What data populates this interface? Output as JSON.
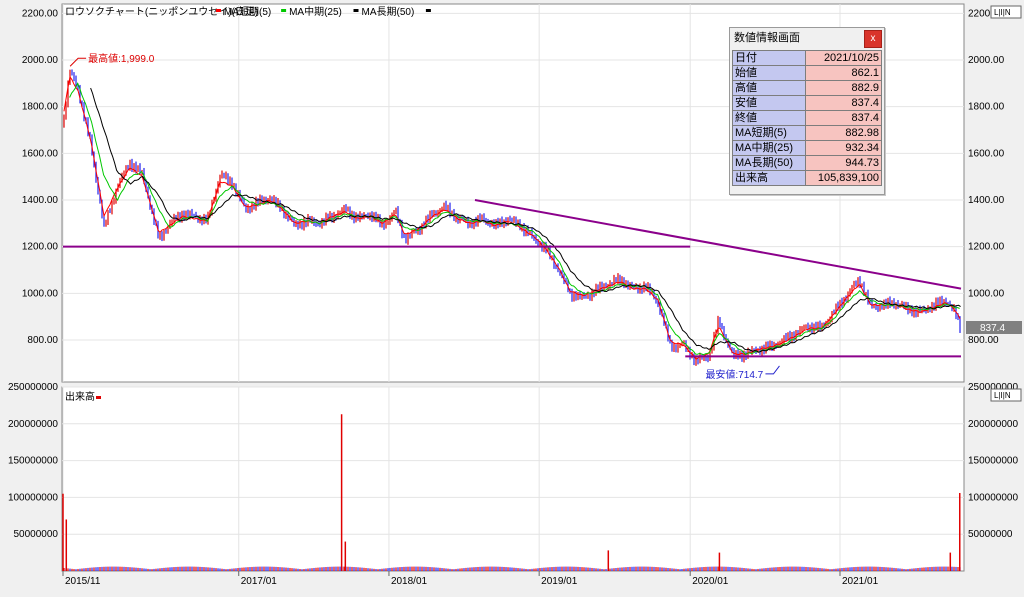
{
  "chart_data": [
    {
      "type": "line",
      "title": "ロウソクチャート(ニッポンユウセイ)(日足)",
      "legend": [
        {
          "label": "MA短期(5)",
          "color": "#ff0000"
        },
        {
          "label": "MA中期(25)",
          "color": "#00c800"
        },
        {
          "label": "MA長期(50)",
          "color": "#000000"
        }
      ],
      "ylim": [
        620,
        2240
      ],
      "y_ticks": [
        800,
        1000,
        1200,
        1400,
        1600,
        1800,
        2000,
        2200
      ],
      "y_tick_labels": [
        "800.00",
        "1000.00",
        "1200.00",
        "1400.00",
        "1600.00",
        "1800.00",
        "2000.00",
        "2200.00"
      ],
      "x_range": [
        "2015-11-04",
        "2021-10-25"
      ],
      "x_tick_labels": [
        {
          "date": "2015-11-04",
          "label": "2015/11"
        },
        {
          "date": "2017-01-04",
          "label": "2017/01"
        },
        {
          "date": "2018-01-04",
          "label": "2018/01"
        },
        {
          "date": "2019-01-04",
          "label": "2019/01"
        },
        {
          "date": "2020-01-06",
          "label": "2020/01"
        },
        {
          "date": "2021-01-04",
          "label": "2021/01"
        }
      ],
      "series": [
        {
          "name": "終値",
          "color": "#2222ee",
          "x": [
            "2015-11-04",
            "2015-11-20",
            "2015-12-10",
            "2016-01-10",
            "2016-02-12",
            "2016-03-15",
            "2016-04-15",
            "2016-05-15",
            "2016-06-24",
            "2016-07-20",
            "2016-08-20",
            "2016-09-20",
            "2016-10-20",
            "2016-11-20",
            "2016-12-20",
            "2017-01-20",
            "2017-02-20",
            "2017-03-20",
            "2017-04-20",
            "2017-05-20",
            "2017-06-20",
            "2017-07-20",
            "2017-08-20",
            "2017-09-20",
            "2017-10-20",
            "2017-11-20",
            "2017-12-20",
            "2018-01-20",
            "2018-02-12",
            "2018-03-20",
            "2018-04-20",
            "2018-05-20",
            "2018-06-20",
            "2018-07-20",
            "2018-08-20",
            "2018-09-20",
            "2018-10-20",
            "2018-11-20",
            "2018-12-25",
            "2019-01-20",
            "2019-02-20",
            "2019-03-20",
            "2019-04-20",
            "2019-05-20",
            "2019-06-20",
            "2019-07-20",
            "2019-08-20",
            "2019-09-20",
            "2019-10-20",
            "2019-11-20",
            "2019-12-20",
            "2020-01-20",
            "2020-02-20",
            "2020-03-15",
            "2020-04-20",
            "2020-05-20",
            "2020-06-20",
            "2020-07-20",
            "2020-08-20",
            "2020-09-20",
            "2020-10-20",
            "2020-11-20",
            "2020-12-20",
            "2021-01-20",
            "2021-02-20",
            "2021-03-20",
            "2021-04-20",
            "2021-05-20",
            "2021-06-20",
            "2021-07-20",
            "2021-08-20",
            "2021-09-20",
            "2021-10-10",
            "2021-10-25"
          ],
          "values": [
            1720,
            1950,
            1880,
            1640,
            1280,
            1460,
            1560,
            1510,
            1230,
            1300,
            1340,
            1330,
            1310,
            1510,
            1470,
            1360,
            1390,
            1410,
            1360,
            1290,
            1310,
            1300,
            1330,
            1360,
            1320,
            1340,
            1290,
            1350,
            1230,
            1280,
            1340,
            1370,
            1320,
            1300,
            1320,
            1290,
            1320,
            1290,
            1230,
            1190,
            1100,
            1000,
            980,
            1010,
            1040,
            1060,
            1020,
            1030,
            960,
            770,
            780,
            710,
            730,
            880,
            730,
            740,
            760,
            770,
            800,
            830,
            860,
            850,
            920,
            990,
            1060,
            940,
            950,
            960,
            930,
            920,
            950,
            970,
            920,
            837.4
          ]
        },
        {
          "name": "MA短期(5)",
          "color": "#ff0000",
          "x": [
            "2015-11-04",
            "2015-11-20",
            "2015-12-10",
            "2016-01-10",
            "2016-02-12",
            "2016-03-15",
            "2016-04-15",
            "2016-05-15",
            "2016-06-24",
            "2016-07-20",
            "2016-08-20",
            "2016-09-20",
            "2016-10-20",
            "2016-11-20",
            "2016-12-20",
            "2017-01-20",
            "2017-02-20",
            "2017-03-20",
            "2017-04-20",
            "2017-05-20",
            "2017-06-20",
            "2017-07-20",
            "2017-08-20",
            "2017-09-20",
            "2017-10-20",
            "2017-11-20",
            "2017-12-20",
            "2018-01-20",
            "2018-02-12",
            "2018-03-20",
            "2018-04-20",
            "2018-05-20",
            "2018-06-20",
            "2018-07-20",
            "2018-08-20",
            "2018-09-20",
            "2018-10-20",
            "2018-11-20",
            "2018-12-25",
            "2019-01-20",
            "2019-02-20",
            "2019-03-20",
            "2019-04-20",
            "2019-05-20",
            "2019-06-20",
            "2019-07-20",
            "2019-08-20",
            "2019-09-20",
            "2019-10-20",
            "2019-11-20",
            "2019-12-20",
            "2020-01-20",
            "2020-02-20",
            "2020-03-15",
            "2020-04-20",
            "2020-05-20",
            "2020-06-20",
            "2020-07-20",
            "2020-08-20",
            "2020-09-20",
            "2020-10-20",
            "2020-11-20",
            "2020-12-20",
            "2021-01-20",
            "2021-02-20",
            "2021-03-20",
            "2021-04-20",
            "2021-05-20",
            "2021-06-20",
            "2021-07-20",
            "2021-08-20",
            "2021-09-20",
            "2021-10-10",
            "2021-10-25"
          ],
          "values": [
            1750,
            1930,
            1870,
            1660,
            1330,
            1450,
            1540,
            1500,
            1260,
            1290,
            1330,
            1320,
            1310,
            1480,
            1460,
            1370,
            1380,
            1400,
            1360,
            1300,
            1310,
            1300,
            1330,
            1350,
            1320,
            1330,
            1300,
            1340,
            1250,
            1280,
            1330,
            1360,
            1320,
            1300,
            1310,
            1290,
            1310,
            1280,
            1240,
            1190,
            1110,
            1010,
            990,
            1010,
            1030,
            1050,
            1020,
            1020,
            970,
            790,
            780,
            720,
            740,
            860,
            740,
            740,
            760,
            770,
            790,
            820,
            850,
            850,
            910,
            980,
            1040,
            950,
            950,
            950,
            930,
            920,
            940,
            960,
            930,
            882.98
          ]
        },
        {
          "name": "MA中期(25)",
          "color": "#00c800",
          "x": [
            "2015-11-20",
            "2015-12-10",
            "2016-01-10",
            "2016-02-12",
            "2016-03-15",
            "2016-04-15",
            "2016-05-15",
            "2016-06-24",
            "2016-07-20",
            "2016-08-20",
            "2016-09-20",
            "2016-10-20",
            "2016-11-20",
            "2016-12-20",
            "2017-01-20",
            "2017-02-20",
            "2017-03-20",
            "2017-04-20",
            "2017-05-20",
            "2017-06-20",
            "2017-07-20",
            "2017-08-20",
            "2017-09-20",
            "2017-10-20",
            "2017-11-20",
            "2017-12-20",
            "2018-01-20",
            "2018-02-12",
            "2018-03-20",
            "2018-04-20",
            "2018-05-20",
            "2018-06-20",
            "2018-07-20",
            "2018-08-20",
            "2018-09-20",
            "2018-10-20",
            "2018-11-20",
            "2018-12-25",
            "2019-01-20",
            "2019-02-20",
            "2019-03-20",
            "2019-04-20",
            "2019-05-20",
            "2019-06-20",
            "2019-07-20",
            "2019-08-20",
            "2019-09-20",
            "2019-10-20",
            "2019-11-20",
            "2019-12-20",
            "2020-01-20",
            "2020-02-20",
            "2020-03-15",
            "2020-04-20",
            "2020-05-20",
            "2020-06-20",
            "2020-07-20",
            "2020-08-20",
            "2020-09-20",
            "2020-10-20",
            "2020-11-20",
            "2020-12-20",
            "2021-01-20",
            "2021-02-20",
            "2021-03-20",
            "2021-04-20",
            "2021-05-20",
            "2021-06-20",
            "2021-07-20",
            "2021-08-20",
            "2021-09-20",
            "2021-10-10",
            "2021-10-25"
          ],
          "values": [
            1840,
            1900,
            1750,
            1500,
            1400,
            1500,
            1520,
            1360,
            1280,
            1320,
            1330,
            1310,
            1420,
            1460,
            1400,
            1380,
            1390,
            1370,
            1320,
            1310,
            1300,
            1320,
            1340,
            1330,
            1330,
            1310,
            1330,
            1280,
            1270,
            1310,
            1350,
            1330,
            1310,
            1310,
            1300,
            1300,
            1290,
            1260,
            1210,
            1140,
            1040,
            1000,
            1000,
            1020,
            1040,
            1030,
            1030,
            990,
            850,
            790,
            740,
            740,
            830,
            780,
            740,
            750,
            765,
            780,
            810,
            840,
            850,
            890,
            960,
            1010,
            970,
            950,
            950,
            940,
            930,
            935,
            955,
            940,
            932.34
          ]
        },
        {
          "name": "MA長期(50)",
          "color": "#000000",
          "x": [
            "2016-01-10",
            "2016-02-12",
            "2016-03-15",
            "2016-04-15",
            "2016-05-15",
            "2016-06-24",
            "2016-07-20",
            "2016-08-20",
            "2016-09-20",
            "2016-10-20",
            "2016-11-20",
            "2016-12-20",
            "2017-01-20",
            "2017-02-20",
            "2017-03-20",
            "2017-04-20",
            "2017-05-20",
            "2017-06-20",
            "2017-07-20",
            "2017-08-20",
            "2017-09-20",
            "2017-10-20",
            "2017-11-20",
            "2017-12-20",
            "2018-01-20",
            "2018-02-12",
            "2018-03-20",
            "2018-04-20",
            "2018-05-20",
            "2018-06-20",
            "2018-07-20",
            "2018-08-20",
            "2018-09-20",
            "2018-10-20",
            "2018-11-20",
            "2018-12-25",
            "2019-01-20",
            "2019-02-20",
            "2019-03-20",
            "2019-04-20",
            "2019-05-20",
            "2019-06-20",
            "2019-07-20",
            "2019-08-20",
            "2019-09-20",
            "2019-10-20",
            "2019-11-20",
            "2019-12-20",
            "2020-01-20",
            "2020-02-20",
            "2020-03-15",
            "2020-04-20",
            "2020-05-20",
            "2020-06-20",
            "2020-07-20",
            "2020-08-20",
            "2020-09-20",
            "2020-10-20",
            "2020-11-20",
            "2020-12-20",
            "2021-01-20",
            "2021-02-20",
            "2021-03-20",
            "2021-04-20",
            "2021-05-20",
            "2021-06-20",
            "2021-07-20",
            "2021-08-20",
            "2021-09-20",
            "2021-10-10",
            "2021-10-25"
          ],
          "values": [
            1880,
            1700,
            1520,
            1470,
            1500,
            1420,
            1330,
            1310,
            1330,
            1320,
            1370,
            1420,
            1420,
            1400,
            1390,
            1380,
            1350,
            1320,
            1310,
            1310,
            1330,
            1330,
            1330,
            1320,
            1320,
            1300,
            1280,
            1290,
            1330,
            1340,
            1320,
            1310,
            1305,
            1300,
            1295,
            1275,
            1240,
            1180,
            1100,
            1040,
            1010,
            1010,
            1030,
            1035,
            1030,
            1010,
            930,
            840,
            780,
            760,
            790,
            790,
            760,
            750,
            760,
            775,
            795,
            820,
            840,
            870,
            920,
            970,
            980,
            960,
            950,
            945,
            940,
            935,
            945,
            948,
            944.73
          ]
        }
      ],
      "support_line_1": 1200,
      "support_line_2": 730,
      "resistance_line": {
        "x": [
          "2018-08-01",
          "2021-10-25"
        ],
        "y": [
          1400,
          1020
        ]
      },
      "annotations": [
        {
          "label": "最高値:1,999.0",
          "date": "2015-12-01",
          "value": 1999.0,
          "color": "#dd0000"
        },
        {
          "label": "最安値:714.7",
          "date": "2020-08-05",
          "value": 714.7,
          "color": "#2222cc"
        }
      ],
      "last_price_tag": "837.4"
    },
    {
      "type": "bar",
      "title": "出来高",
      "ylim": [
        0,
        250000000
      ],
      "y_ticks": [
        50000000,
        100000000,
        150000000,
        200000000,
        250000000
      ],
      "y_tick_labels": [
        "50000000",
        "100000000",
        "150000000",
        "200000000",
        "250000000"
      ],
      "baseline_volume": 4000000,
      "spikes": [
        {
          "date": "2015-11-04",
          "value": 105000000
        },
        {
          "date": "2015-11-12",
          "value": 70000000
        },
        {
          "date": "2017-09-11",
          "value": 213000000
        },
        {
          "date": "2017-09-20",
          "value": 40000000
        },
        {
          "date": "2019-06-21",
          "value": 28000000
        },
        {
          "date": "2020-03-17",
          "value": 25000000
        },
        {
          "date": "2021-09-29",
          "value": 25000000
        },
        {
          "date": "2021-10-22",
          "value": 106000000
        }
      ]
    }
  ],
  "info_panel": {
    "title": "数値情報画面",
    "close_label": "x",
    "rows": [
      {
        "label": "日付",
        "value": "2021/10/25"
      },
      {
        "label": "始値",
        "value": "862.1"
      },
      {
        "label": "高値",
        "value": "882.9"
      },
      {
        "label": "安値",
        "value": "837.4"
      },
      {
        "label": "終値",
        "value": "837.4"
      },
      {
        "label": "MA短期(5)",
        "value": "882.98"
      },
      {
        "label": "MA中期(25)",
        "value": "932.34"
      },
      {
        "label": "MA長期(50)",
        "value": "944.73"
      },
      {
        "label": "出来高",
        "value": "105,839,100"
      }
    ]
  },
  "pane_buttons": {
    "top": "L|I|N",
    "bottom": "L|I|N"
  },
  "colors": {
    "up": "#e00000",
    "down": "#2020ee",
    "background": "#ffffff",
    "frame": "#f0f0f0",
    "support": "#8b008b",
    "resistance": "#8b008b"
  }
}
